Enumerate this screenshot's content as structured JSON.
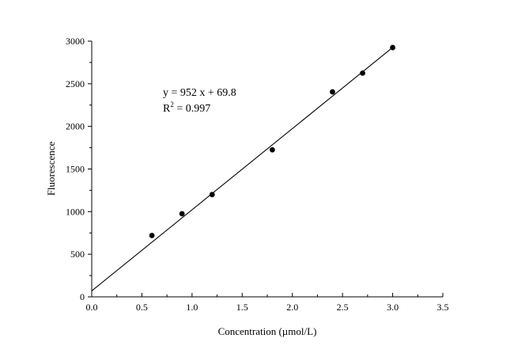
{
  "chart_data": {
    "type": "scatter",
    "xlabel": "Concentration (µmol/L)",
    "ylabel": "Fluorescence",
    "xlim": [
      0,
      3.5
    ],
    "ylim": [
      0,
      3000
    ],
    "x_ticks": [
      "0.0",
      "0.5",
      "1.0",
      "1.5",
      "2.0",
      "2.5",
      "3.0",
      "3.5"
    ],
    "y_ticks": [
      "0",
      "500",
      "1000",
      "1500",
      "2000",
      "2500",
      "3000"
    ],
    "grid": false,
    "series": [
      {
        "points": [
          {
            "x": 0.6,
            "y": 720
          },
          {
            "x": 0.9,
            "y": 975
          },
          {
            "x": 1.2,
            "y": 1200
          },
          {
            "x": 1.8,
            "y": 1725
          },
          {
            "x": 2.4,
            "y": 2405
          },
          {
            "x": 2.7,
            "y": 2625
          },
          {
            "x": 3.0,
            "y": 2925
          }
        ]
      }
    ],
    "fit": {
      "slope": 952,
      "intercept": 69.8,
      "x_range": [
        0,
        3.0
      ]
    },
    "annotations": {
      "equation": "y = 952 x + 69.8",
      "r2_prefix": "R",
      "r2_sup": "2",
      "r2_value": " = 0.997"
    }
  }
}
